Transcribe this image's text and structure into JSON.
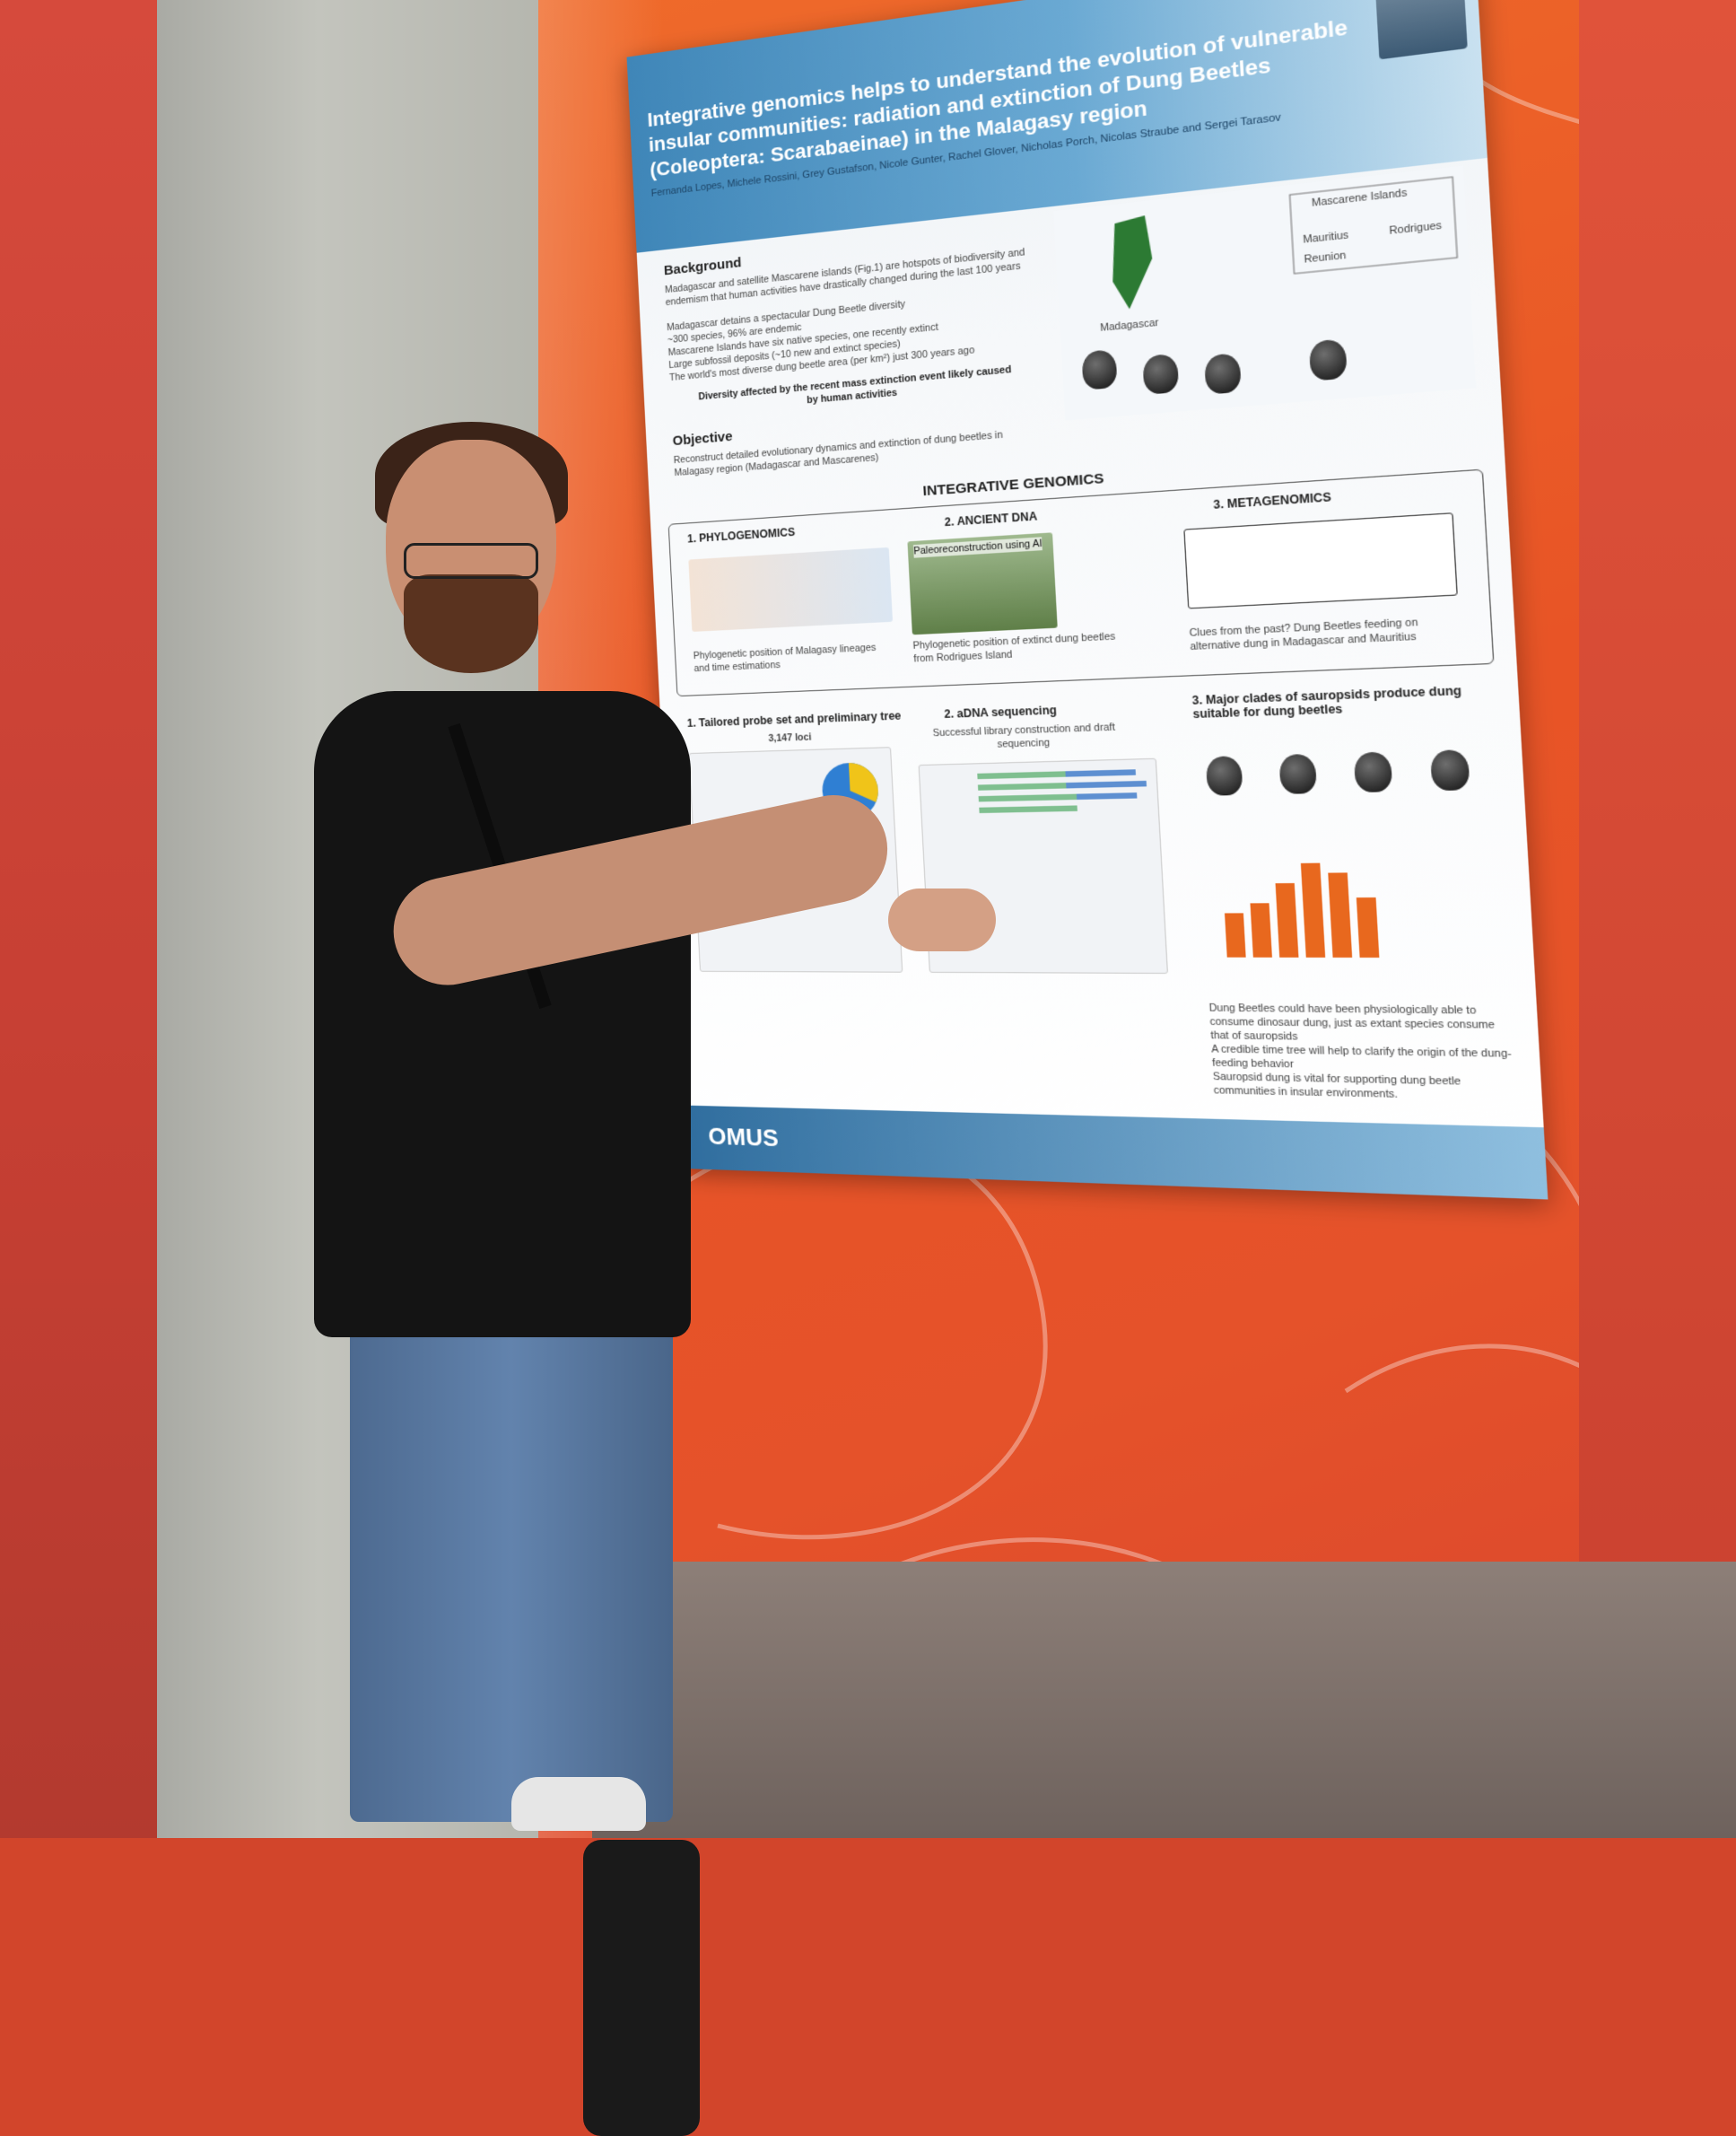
{
  "poster": {
    "title": "Integrative genomics helps to understand the evolution of vulnerable insular communities: radiation and extinction of Dung Beetles (Coleoptera: Scarabaeinae) in the Malagasy region",
    "authors": "Fernanda Lopes, Michele Rossini, Grey Gustafson, Nicole Gunter, Rachel Glover, Nicholas Porch, Nicolas Straube and Sergei Tarasov",
    "background_heading": "Background",
    "background_text": "Madagascar and satellite Mascarene islands (Fig.1) are hotspots of biodiversity and endemism that human activities have drastically changed during the last 100 years",
    "background_points": [
      "Madagascar detains a spectacular Dung Beetle diversity",
      "~300 species, 96% are endemic",
      "Mascarene Islands have six native species, one recently extinct",
      "Large subfossil deposits (~10 new and extinct species)",
      "The world's most diverse dung beetle area (per km²) just 300 years ago"
    ],
    "background_highlight": "Diversity affected by the recent mass extinction event likely caused by human activities",
    "objective_heading": "Objective",
    "objective_text": "Reconstruct detailed evolutionary dynamics and extinction of dung beetles in Malagasy region (Madagascar and Mascarenes)",
    "map_labels": {
      "madagascar": "Madagascar",
      "mascarene": "Mascarene Islands",
      "mauritius": "Mauritius",
      "reunion": "Reunion",
      "rodrigues": "Rodrigues"
    },
    "integrative_heading": "INTEGRATIVE GENOMICS",
    "sections": [
      {
        "title": "1. PHYLOGENOMICS",
        "caption": "Phylogenetic position of Malagasy lineages and time estimations"
      },
      {
        "title": "2. ANCIENT DNA",
        "inset": "Paleoreconstruction using AI",
        "caption": "Phylogenetic position of extinct dung beetles from Rodrigues Island"
      },
      {
        "title": "3. METAGENOMICS",
        "caption": "Clues from the past? Dung Beetles feeding on alternative dung in Madagascar and Mauritius"
      }
    ],
    "results": [
      {
        "title": "1. Tailored probe set and preliminary tree",
        "subtitle": "3,147 loci"
      },
      {
        "title": "2. aDNA sequencing",
        "subtitle": "Successful library construction and draft sequencing"
      },
      {
        "title": "3. Major clades of sauropsids produce dung suitable for dung beetles",
        "subtitle": ""
      }
    ],
    "conclusions": [
      "Dung Beetles could have been physiologically able to consume dinosaur dung, just as extant species consume that of sauropsids",
      "A credible time tree will help to clarify the origin of the dung-feeding behavior",
      "Sauropsid dung is vital for supporting dung beetle communities in insular environments."
    ],
    "footer_logo": "OMUS"
  },
  "colors": {
    "wall": "#e85426",
    "poster_header": "#3f86b8",
    "chart_orange": "#e8681e"
  }
}
